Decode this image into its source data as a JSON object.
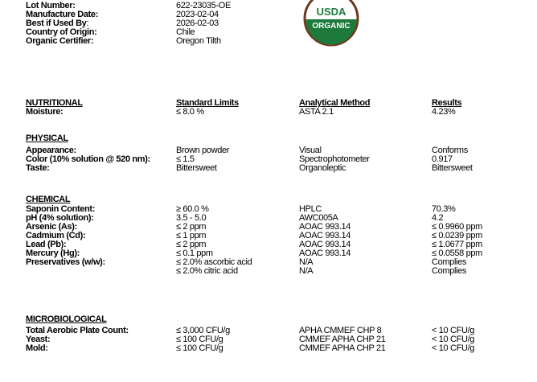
{
  "info": [
    {
      "label": "Lot Number:",
      "value": "622-23035-OE"
    },
    {
      "label": "Manufacture Date:",
      "value": "2023-02-04"
    },
    {
      "label": "Best if Used By",
      "label_suffix": ":",
      "value": "2026-02-03"
    },
    {
      "label": "Country of Origin:",
      "value": "Chile"
    },
    {
      "label": "Organic Certifier:",
      "value": "Oregon Tilth"
    }
  ],
  "logo": {
    "top": "USDA",
    "bottom": "ORGANIC",
    "green": "#1e7a3c",
    "brown": "#6b3a1f"
  },
  "headers": {
    "section": "NUTRITIONAL",
    "limits": "Standard Limits",
    "method": "Analytical Method",
    "results": "Results"
  },
  "nutritional": [
    {
      "name": "Moisture:",
      "limit": "≤ 8.0 %",
      "method": "ASTA 2.1",
      "result": "4.23%"
    }
  ],
  "physical_title": "PHYSICAL",
  "physical": [
    {
      "name": "Appearance:",
      "limit": "Brown powder",
      "method": "Visual",
      "result": "Conforms"
    },
    {
      "name": "Color (10% solution @ 520 nm):",
      "limit": "≤ 1.5",
      "method": "Spectrophotometer",
      "result": "0.917"
    },
    {
      "name": "Taste:",
      "limit": "Bittersweet",
      "method": "Organoleptic",
      "result": "Bittersweet"
    }
  ],
  "chemical_title": "CHEMICAL",
  "chemical": [
    {
      "name": "Saponin Content:",
      "limit": "≥ 60.0 %",
      "method": "HPLC",
      "result": "70.3%"
    },
    {
      "name": "pH (4% solution):",
      "limit": "3.5 - 5.0",
      "method": "AWC005A",
      "result": "4.2"
    },
    {
      "name": "Arsenic (As):",
      "limit": "≤ 2 ppm",
      "method": "AOAC 993.14",
      "result": "≤ 0.9960 ppm"
    },
    {
      "name": "Cadmium (Cd):",
      "limit": "≤ 1 ppm",
      "method": "AOAC 993.14",
      "result": "≤ 0.0239 ppm"
    },
    {
      "name": "Lead (Pb):",
      "limit": "≤ 2 ppm",
      "method": "AOAC 993.14",
      "result": "≤ 1.0677 ppm"
    },
    {
      "name": "Mercury (Hg):",
      "limit": "≤ 0.1 ppm",
      "method": "AOAC 993.14",
      "result": "≤ 0.0558 ppm"
    },
    {
      "name": "Preservatives (w/w):",
      "limit": "≤ 2.0% ascorbic acid",
      "method": "N/A",
      "result": "Complies"
    },
    {
      "name": "",
      "limit": "≤ 2.0% citric acid",
      "method": "N/A",
      "result": "Complies"
    }
  ],
  "micro_title": "MICROBIOLOGICAL",
  "micro": [
    {
      "name": "Total Aerobic Plate Count:",
      "limit": "≤ 3,000 CFU/g",
      "method": "APHA CMMEF CHP 8",
      "result": "< 10 CFU/g"
    },
    {
      "name": "Yeast:",
      "limit": "≤ 100 CFU/g",
      "method": "CMMEF APHA CHP 21",
      "result": "< 10 CFU/g"
    },
    {
      "name": "Mold:",
      "limit": "≤ 100 CFU/g",
      "method": "CMMEF APHA CHP 21",
      "result": "< 10 CFU/g"
    }
  ]
}
